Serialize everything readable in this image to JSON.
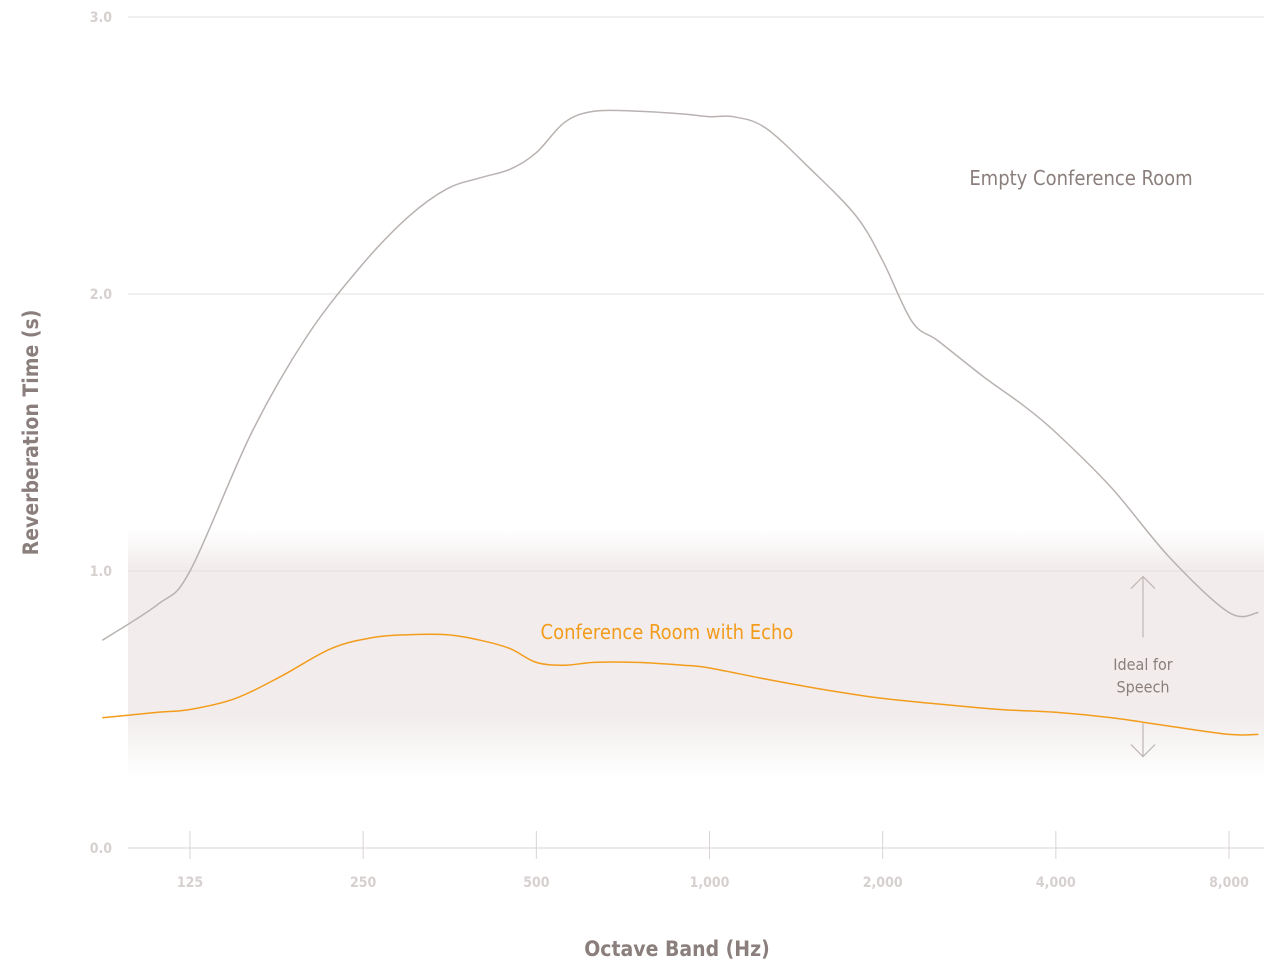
{
  "chart_data": {
    "type": "line",
    "xlabel": "Octave Band (Hz)",
    "ylabel": "Reverberation Time (s)",
    "x_scale": "log2",
    "x_ticks": [
      125,
      250,
      500,
      1000,
      2000,
      4000,
      8000
    ],
    "x_tick_labels": [
      "125",
      "250",
      "500",
      "1,000",
      "2,000",
      "4,000",
      "8,000"
    ],
    "xlim": [
      88,
      9000
    ],
    "y_ticks": [
      0,
      1,
      2,
      3
    ],
    "y_tick_labels": [
      "0.0",
      "1.0",
      "2.0",
      "3.0"
    ],
    "ylim": [
      0,
      3
    ],
    "grid": true,
    "band": {
      "label_lines": [
        "Ideal for",
        "Speech"
      ],
      "y_range": [
        0.25,
        1.15
      ]
    },
    "colors": {
      "empty": "#b8b2b0",
      "echo": "#f39c1c",
      "grid": "#e4e0df",
      "band": "#f0ebea",
      "arrows": "#bdb6b4"
    },
    "series": [
      {
        "name": "Empty Conference Room",
        "x": [
          88,
          110,
          125,
          160,
          200,
          250,
          300,
          350,
          400,
          450,
          500,
          560,
          630,
          750,
          900,
          1000,
          1100,
          1250,
          1500,
          1800,
          2000,
          2250,
          2500,
          3000,
          3500,
          4000,
          5000,
          6300,
          8000,
          9000
        ],
        "values": [
          0.75,
          0.88,
          1.0,
          1.5,
          1.85,
          2.11,
          2.28,
          2.38,
          2.42,
          2.45,
          2.51,
          2.62,
          2.66,
          2.66,
          2.65,
          2.64,
          2.64,
          2.6,
          2.45,
          2.28,
          2.12,
          1.9,
          1.83,
          1.7,
          1.6,
          1.5,
          1.3,
          1.05,
          0.85,
          0.85
        ]
      },
      {
        "name": "Conference Room with Echo",
        "x": [
          88,
          110,
          125,
          150,
          180,
          220,
          260,
          300,
          350,
          400,
          450,
          500,
          560,
          630,
          750,
          900,
          1000,
          1250,
          1600,
          2000,
          2500,
          3200,
          4000,
          5000,
          6300,
          8000,
          9000
        ],
        "values": [
          0.47,
          0.49,
          0.5,
          0.54,
          0.62,
          0.72,
          0.76,
          0.77,
          0.77,
          0.75,
          0.72,
          0.67,
          0.66,
          0.67,
          0.67,
          0.66,
          0.65,
          0.61,
          0.57,
          0.54,
          0.52,
          0.5,
          0.49,
          0.47,
          0.44,
          0.41,
          0.41
        ]
      }
    ]
  }
}
